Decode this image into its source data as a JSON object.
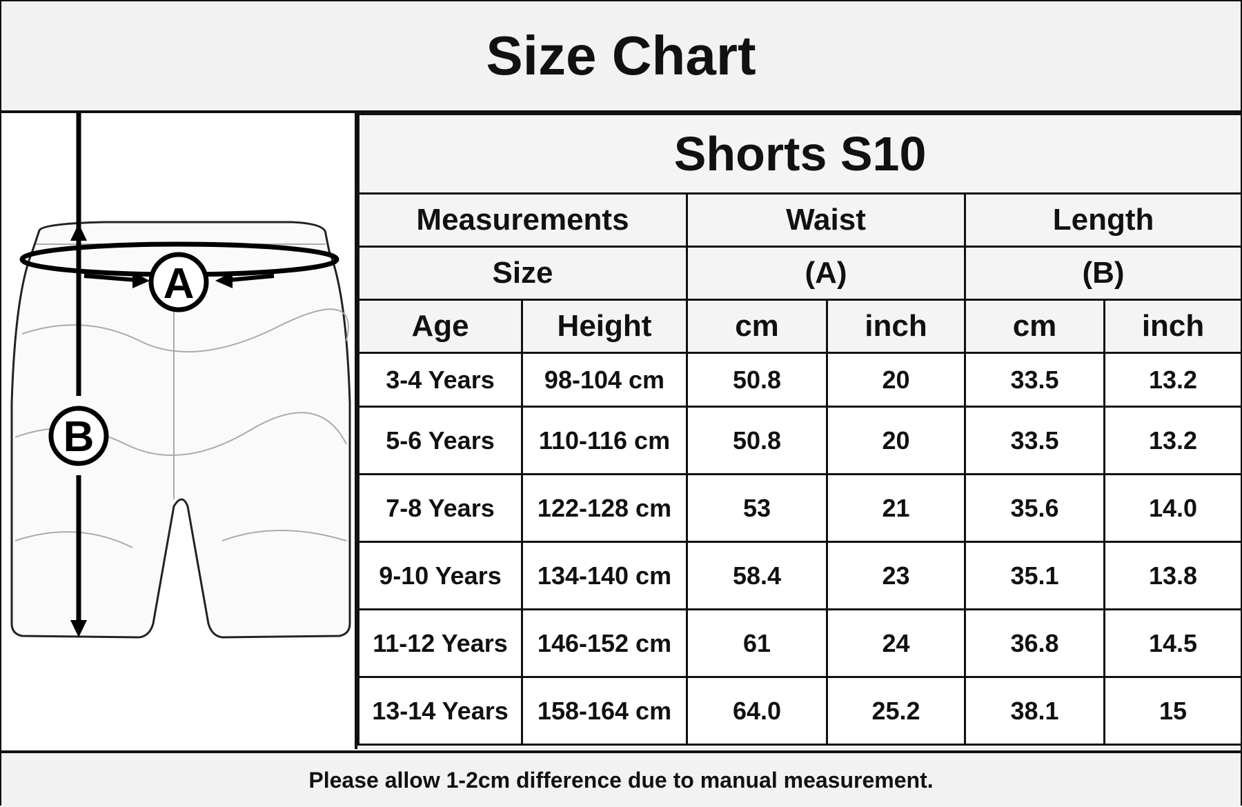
{
  "title": "Size Chart",
  "product": "Shorts S10",
  "diagram": {
    "label_a": "A",
    "label_b": "B",
    "icon": "shorts-measurement-diagram"
  },
  "headers": {
    "measurements": "Measurements",
    "waist": "Waist",
    "length": "Length",
    "size": "Size",
    "waist_code": "(A)",
    "length_code": "(B)",
    "age": "Age",
    "height": "Height",
    "cm": "cm",
    "inch": "inch"
  },
  "rows": [
    {
      "age": "3-4 Years",
      "height": "98-104 cm",
      "waist_cm": "50.8",
      "waist_inch": "20",
      "length_cm": "33.5",
      "length_inch": "13.2"
    },
    {
      "age": "5-6 Years",
      "height": "110-116 cm",
      "waist_cm": "50.8",
      "waist_inch": "20",
      "length_cm": "33.5",
      "length_inch": "13.2"
    },
    {
      "age": "7-8 Years",
      "height": "122-128 cm",
      "waist_cm": "53",
      "waist_inch": "21",
      "length_cm": "35.6",
      "length_inch": "14.0"
    },
    {
      "age": "9-10 Years",
      "height": "134-140 cm",
      "waist_cm": "58.4",
      "waist_inch": "23",
      "length_cm": "35.1",
      "length_inch": "13.8"
    },
    {
      "age": "11-12 Years",
      "height": "146-152 cm",
      "waist_cm": "61",
      "waist_inch": "24",
      "length_cm": "36.8",
      "length_inch": "14.5"
    },
    {
      "age": "13-14 Years",
      "height": "158-164 cm",
      "waist_cm": "64.0",
      "waist_inch": "25.2",
      "length_cm": "38.1",
      "length_inch": "15"
    }
  ],
  "footer": "Please allow 1-2cm difference due to manual measurement."
}
